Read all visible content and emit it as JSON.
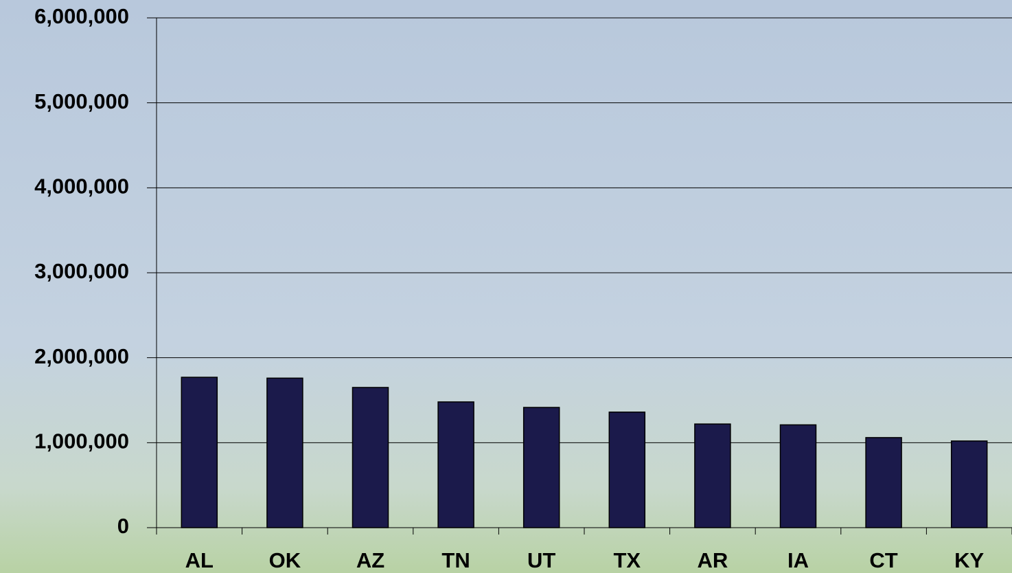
{
  "chart_data": {
    "type": "bar",
    "categories": [
      "AL",
      "OK",
      "AZ",
      "TN",
      "UT",
      "TX",
      "AR",
      "IA",
      "CT",
      "KY"
    ],
    "values": [
      1770000,
      1760000,
      1650000,
      1480000,
      1415000,
      1360000,
      1220000,
      1210000,
      1060000,
      1020000
    ],
    "color": "#1b1a4b",
    "ylim": [
      0,
      6000000
    ],
    "yticks": [
      0,
      {
        "value": 1000000,
        "label": "1,000,000"
      },
      {
        "value": 2000000,
        "label": "2,000,000"
      },
      {
        "value": 3000000,
        "label": "3,000,000"
      },
      {
        "value": 4000000,
        "label": "4,000,000"
      },
      {
        "value": 5000000,
        "label": "5,000,000"
      },
      {
        "value": 6000000,
        "label": "6,000,000"
      }
    ],
    "grid": true
  }
}
